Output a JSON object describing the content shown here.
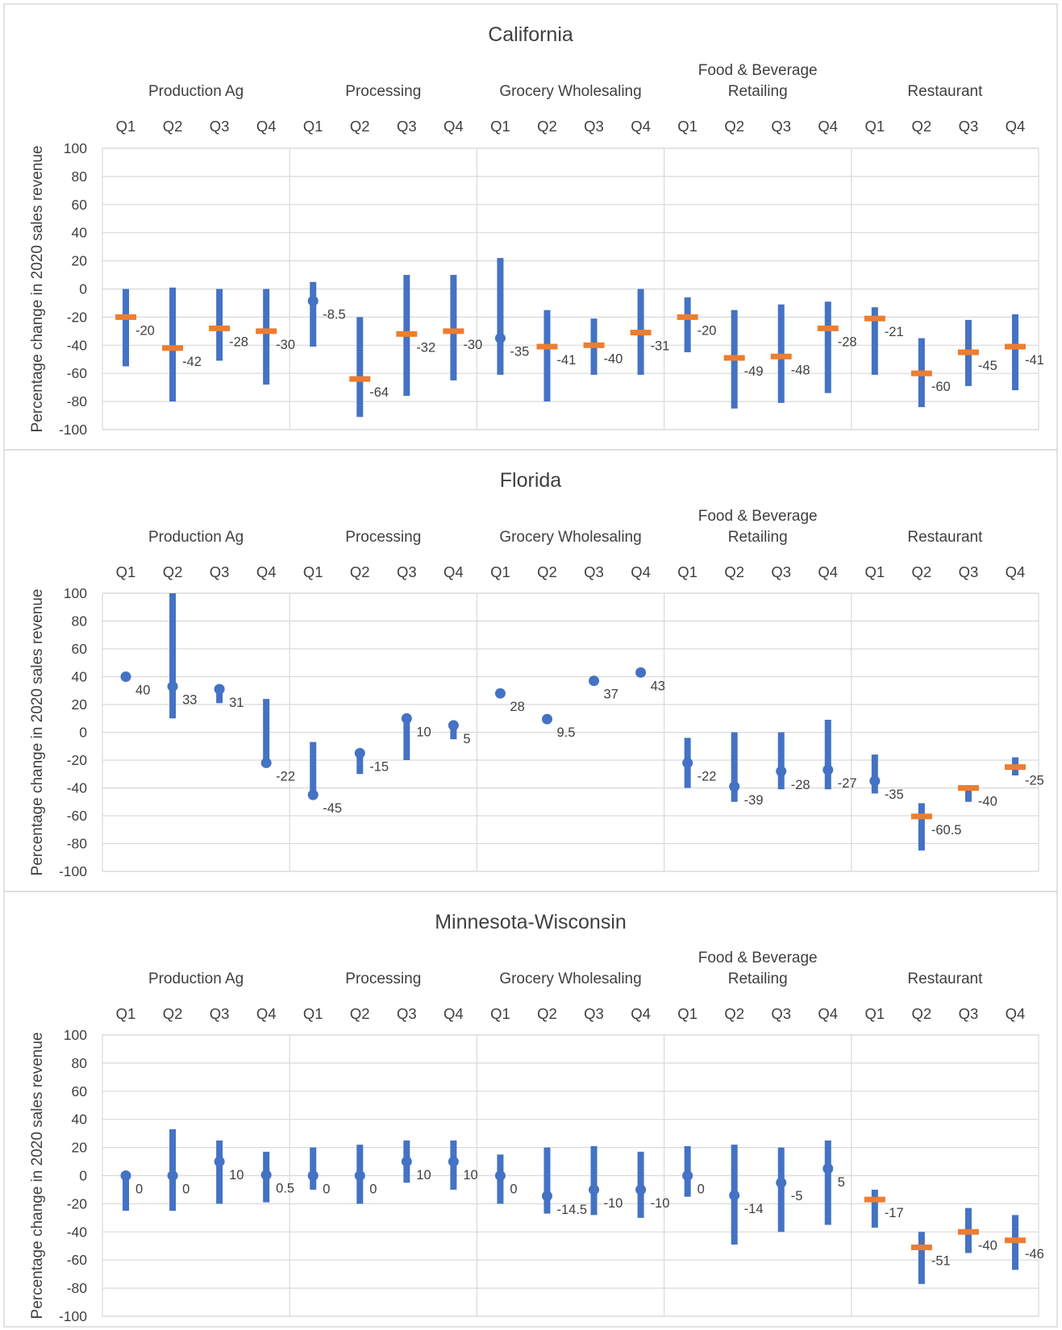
{
  "chart_data": [
    {
      "type": "range",
      "title": "California",
      "ylabel": "Percentage change in 2020 sales revenue",
      "ylim": [
        -100,
        100
      ],
      "yticks": [
        "100",
        "80",
        "60",
        "40",
        "20",
        "0",
        "-20",
        "-40",
        "-60",
        "-80",
        "-100"
      ],
      "groups": [
        "Production Ag",
        "Processing",
        "Grocery Wholesaling",
        "Food & Beverage Retailing",
        "Restaurant"
      ],
      "quarters": [
        "Q1",
        "Q2",
        "Q3",
        "Q4"
      ],
      "ranges": [
        [
          -55,
          0
        ],
        [
          -80,
          1
        ],
        [
          -51,
          0
        ],
        [
          -68,
          0
        ],
        [
          -41,
          5
        ],
        [
          -91,
          -20
        ],
        [
          -76,
          10
        ],
        [
          -65,
          10
        ],
        [
          -61,
          22
        ],
        [
          -80,
          -15
        ],
        [
          -61,
          -21
        ],
        [
          -61,
          0
        ],
        [
          -45,
          -6
        ],
        [
          -85,
          -15
        ],
        [
          -81,
          -11
        ],
        [
          -74,
          -9
        ],
        [
          -61,
          -13
        ],
        [
          -84,
          -35
        ],
        [
          -69,
          -22
        ],
        [
          -72,
          -18
        ]
      ],
      "values": [
        -20,
        -42,
        -28,
        -30,
        -8.5,
        -64,
        -32,
        -30,
        -35,
        -41,
        -40,
        -31,
        -20,
        -49,
        -48,
        -28,
        -21,
        -60,
        -45,
        -41
      ],
      "labels": [
        "-20",
        "-42",
        "-28",
        "-30",
        "-8.5",
        "-64",
        "-32",
        "-30",
        "-35",
        "-41",
        "-40",
        "-31",
        "-20",
        "-49",
        "-48",
        "-28",
        "-21",
        "-60",
        "-45",
        "-41"
      ],
      "markers": [
        "bar",
        "bar",
        "bar",
        "bar",
        "dot",
        "bar",
        "bar",
        "bar",
        "dot",
        "bar",
        "bar",
        "bar",
        "bar",
        "bar",
        "bar",
        "bar",
        "bar",
        "bar",
        "bar",
        "bar"
      ],
      "colors": {
        "range": "#4472c4",
        "marker_dot": "#4472c4",
        "marker_bar": "#ed7d31",
        "grid": "#d9d9d9"
      }
    },
    {
      "type": "range",
      "title": "Florida",
      "ylabel": "Percentage change in 2020 sales revenue",
      "ylim": [
        -100,
        100
      ],
      "yticks": [
        "100",
        "80",
        "60",
        "40",
        "20",
        "0",
        "-20",
        "-40",
        "-60",
        "-80",
        "-100"
      ],
      "groups": [
        "Production Ag",
        "Processing",
        "Grocery Wholesaling",
        "Food & Beverage Retailing",
        "Restaurant"
      ],
      "quarters": [
        "Q1",
        "Q2",
        "Q3",
        "Q4"
      ],
      "ranges": [
        null,
        [
          10,
          100
        ],
        [
          21,
          31
        ],
        [
          -22,
          24
        ],
        [
          -45,
          -7
        ],
        [
          -30,
          -15
        ],
        [
          -20,
          10
        ],
        [
          -5,
          5
        ],
        null,
        null,
        null,
        null,
        [
          -40,
          -4
        ],
        [
          -50,
          0
        ],
        [
          -41,
          0
        ],
        [
          -41,
          9
        ],
        [
          -44,
          -16
        ],
        [
          -85,
          -51
        ],
        [
          -50,
          -40
        ],
        [
          -31,
          -18
        ]
      ],
      "values": [
        40,
        33,
        31,
        -22,
        -45,
        -15,
        10,
        5,
        28,
        9.5,
        37,
        43,
        -22,
        -39,
        -28,
        -27,
        -35,
        -60.5,
        -40,
        -25
      ],
      "labels": [
        "40",
        "33",
        "31",
        "-22",
        "-45",
        "-15",
        "10",
        "5",
        "28",
        "9.5",
        "37",
        "43",
        "-22",
        "-39",
        "-28",
        "-27",
        "-35",
        "-60.5",
        "-40",
        "-25"
      ],
      "markers": [
        "dot",
        "dot",
        "dot",
        "dot",
        "dot",
        "dot",
        "dot",
        "dot",
        "dot",
        "dot",
        "dot",
        "dot",
        "dot",
        "dot",
        "dot",
        "dot",
        "dot",
        "bar",
        "bar",
        "bar"
      ],
      "colors": {
        "range": "#4472c4",
        "marker_dot": "#4472c4",
        "marker_bar": "#ed7d31",
        "grid": "#d9d9d9"
      }
    },
    {
      "type": "range",
      "title": "Minnesota-Wisconsin",
      "ylabel": "Percentage change in 2020 sales revenue",
      "ylim": [
        -100,
        100
      ],
      "yticks": [
        "100",
        "80",
        "60",
        "40",
        "20",
        "0",
        "-20",
        "-40",
        "-60",
        "-80",
        "-100"
      ],
      "groups": [
        "Production Ag",
        "Processing",
        "Grocery Wholesaling",
        "Food & Beverage Retailing",
        "Restaurant"
      ],
      "quarters": [
        "Q1",
        "Q2",
        "Q3",
        "Q4"
      ],
      "ranges": [
        [
          -25,
          0
        ],
        [
          -25,
          33
        ],
        [
          -20,
          25
        ],
        [
          -19,
          17
        ],
        [
          -10,
          20
        ],
        [
          -20,
          22
        ],
        [
          -5,
          25
        ],
        [
          -10,
          25
        ],
        [
          -20,
          15
        ],
        [
          -27,
          20
        ],
        [
          -28,
          21
        ],
        [
          -30,
          17
        ],
        [
          -15,
          21
        ],
        [
          -49,
          22
        ],
        [
          -40,
          20
        ],
        [
          -35,
          25
        ],
        [
          -37,
          -10
        ],
        [
          -77,
          -40
        ],
        [
          -55,
          -23
        ],
        [
          -67,
          -28
        ]
      ],
      "values": [
        0,
        0,
        10,
        0.5,
        0,
        0,
        10,
        10,
        0,
        -14.5,
        -10,
        -10,
        0,
        -14,
        -5,
        5,
        -17,
        -51,
        -40,
        -46
      ],
      "labels": [
        "0",
        "0",
        "10",
        "0.5",
        "0",
        "0",
        "10",
        "10",
        "0",
        "-14.5",
        "-10",
        "-10",
        "0",
        "-14",
        "-5",
        "5",
        "-17",
        "-51",
        "-40",
        "-46"
      ],
      "markers": [
        "dot",
        "dot",
        "dot",
        "dot",
        "dot",
        "dot",
        "dot",
        "dot",
        "dot",
        "dot",
        "dot",
        "dot",
        "dot",
        "dot",
        "dot",
        "dot",
        "bar",
        "bar",
        "bar",
        "bar"
      ],
      "colors": {
        "range": "#4472c4",
        "marker_dot": "#4472c4",
        "marker_bar": "#ed7d31",
        "grid": "#d9d9d9"
      }
    }
  ]
}
